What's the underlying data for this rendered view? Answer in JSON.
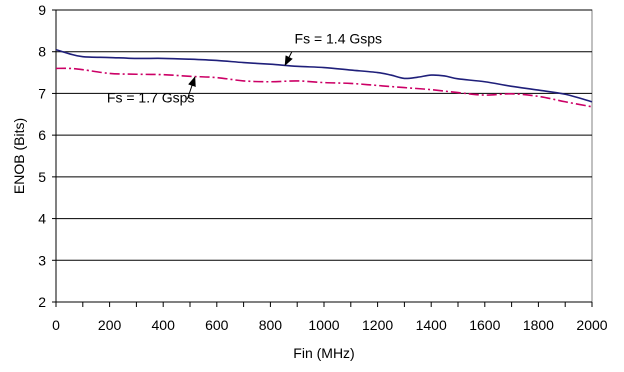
{
  "chart_data": {
    "type": "line",
    "title": "",
    "xlabel": "Fin (MHz)",
    "ylabel": "ENOB (Bits)",
    "xlim": [
      0,
      2000
    ],
    "ylim": [
      2,
      9
    ],
    "x_ticks": [
      0,
      200,
      400,
      600,
      800,
      1000,
      1200,
      1400,
      1600,
      1800,
      2000
    ],
    "x_tick_labels": [
      "0",
      "200",
      "400",
      "600",
      "800",
      "1000",
      "1200",
      "1400",
      "1600",
      "1800",
      "2000"
    ],
    "y_ticks": [
      2,
      3,
      4,
      5,
      6,
      7,
      8,
      9
    ],
    "y_tick_labels": [
      "2",
      "3",
      "4",
      "5",
      "6",
      "7",
      "8",
      "9"
    ],
    "grid": "horizontal",
    "series": [
      {
        "name": "Fs = 1.4 Gsps",
        "style": "solid",
        "color": "#1f1f7a",
        "x": [
          0,
          50,
          100,
          200,
          300,
          400,
          500,
          600,
          700,
          800,
          900,
          1000,
          1100,
          1200,
          1250,
          1300,
          1350,
          1400,
          1450,
          1500,
          1600,
          1700,
          1800,
          1900,
          2000
        ],
        "y": [
          8.05,
          7.95,
          7.88,
          7.86,
          7.84,
          7.84,
          7.82,
          7.79,
          7.74,
          7.7,
          7.65,
          7.62,
          7.56,
          7.5,
          7.44,
          7.36,
          7.39,
          7.44,
          7.42,
          7.35,
          7.28,
          7.17,
          7.08,
          6.98,
          6.8
        ]
      },
      {
        "name": "Fs = 1.7 Gsps",
        "style": "dash-dot",
        "color": "#cc0066",
        "x": [
          0,
          50,
          100,
          200,
          300,
          400,
          500,
          600,
          700,
          800,
          900,
          1000,
          1100,
          1200,
          1300,
          1400,
          1500,
          1600,
          1700,
          1800,
          1900,
          2000
        ],
        "y": [
          7.6,
          7.6,
          7.57,
          7.48,
          7.46,
          7.45,
          7.41,
          7.38,
          7.3,
          7.28,
          7.3,
          7.26,
          7.24,
          7.19,
          7.14,
          7.09,
          7.02,
          6.96,
          6.99,
          6.93,
          6.8,
          6.68
        ]
      }
    ],
    "annotations": [
      {
        "text": "Fs = 1.4 Gsps",
        "series_index": 0,
        "label_x": 890,
        "label_y": 8.2,
        "arrow_from_x": 880,
        "arrow_from_y": 8.0,
        "arrow_to_x": 855,
        "arrow_to_y": 7.68
      },
      {
        "text": "Fs = 1.7 Gsps",
        "series_index": 1,
        "label_x": 190,
        "label_y": 6.78,
        "arrow_from_x": 490,
        "arrow_from_y": 6.86,
        "arrow_to_x": 518,
        "arrow_to_y": 7.39
      }
    ]
  }
}
